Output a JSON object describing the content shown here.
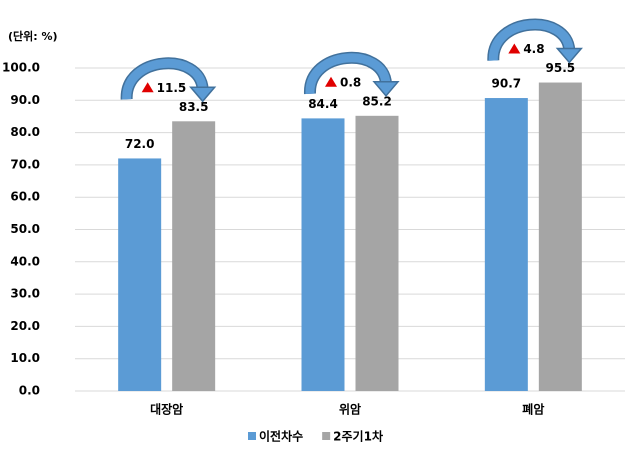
{
  "chart_data": {
    "type": "bar",
    "unit_label": "(단위: %)",
    "categories": [
      "대장암",
      "위암",
      "폐암"
    ],
    "series": [
      {
        "name": "이전차수",
        "color": "#5b9bd5",
        "values": [
          72.0,
          84.4,
          90.7
        ],
        "value_labels": [
          "72.0",
          "84.4",
          "90.7"
        ]
      },
      {
        "name": "2주기1차",
        "color": "#a5a5a5",
        "values": [
          83.5,
          85.2,
          95.5
        ],
        "value_labels": [
          "83.5",
          "85.2",
          "95.5"
        ]
      }
    ],
    "changes": [
      11.5,
      0.8,
      4.8
    ],
    "ylim": [
      0,
      100
    ],
    "yticks": [
      {
        "value": 0,
        "label": "0.0"
      },
      {
        "value": 10,
        "label": "10.0"
      },
      {
        "value": 20,
        "label": "20.0"
      },
      {
        "value": 30,
        "label": "30.0"
      },
      {
        "value": 40,
        "label": "40.0"
      },
      {
        "value": 50,
        "label": "50.0"
      },
      {
        "value": 60,
        "label": "60.0"
      },
      {
        "value": 70,
        "label": "70.0"
      },
      {
        "value": 80,
        "label": "80.0"
      },
      {
        "value": 90,
        "label": "90.0"
      },
      {
        "value": 100,
        "label": "100.0"
      }
    ],
    "grid": true
  }
}
